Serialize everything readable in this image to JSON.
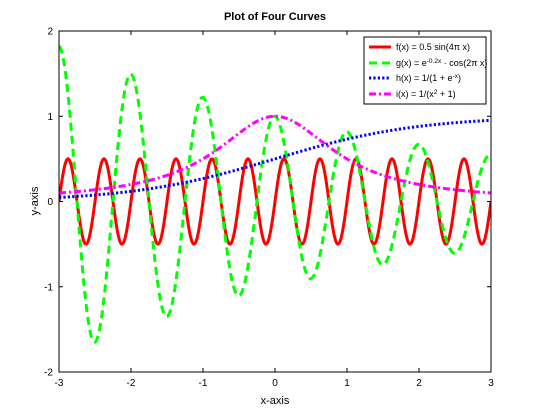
{
  "chart_data": {
    "type": "line",
    "title": "Plot of Four Curves",
    "xlabel": "x-axis",
    "ylabel": "y-axis",
    "xlim": [
      -3,
      3
    ],
    "ylim": [
      -2,
      2
    ],
    "xticks": [
      -3,
      -2,
      -1,
      0,
      1,
      2,
      3
    ],
    "yticks": [
      -2,
      -1,
      0,
      1,
      2
    ],
    "xtick_labels": [
      "-3",
      "-2",
      "-1",
      "0",
      "1",
      "2",
      "3"
    ],
    "ytick_labels": [
      "-2",
      "-1",
      "0",
      "1",
      "2"
    ],
    "grid": false,
    "legend_position": "top-right",
    "series": [
      {
        "key": "f",
        "legend": "f(x) = 0.5 sin(4π x)",
        "color": "#ff0000",
        "style": "solid"
      },
      {
        "key": "g",
        "legend": "g(x) = e^{-0.2x} · cos(2π x)",
        "color": "#00ff00",
        "style": "dashed"
      },
      {
        "key": "h",
        "legend": "h(x) = 1/(1 + e^{-x})",
        "color": "#0000ff",
        "style": "dotted"
      },
      {
        "key": "i",
        "legend": "i(x) = 1/(x^2 + 1)",
        "color": "#ff00ff",
        "style": "dashdot"
      }
    ],
    "legend_parts": {
      "f": [
        "f(x) = 0.5 sin(4π x)"
      ],
      "g": [
        "g(x) = e",
        "-0.2x",
        " · cos(2π x)"
      ],
      "h": [
        "h(x) = 1/(1 + e",
        "-x",
        ")"
      ],
      "i": [
        "i(x) = 1/(x",
        "2",
        " + 1)"
      ]
    }
  }
}
